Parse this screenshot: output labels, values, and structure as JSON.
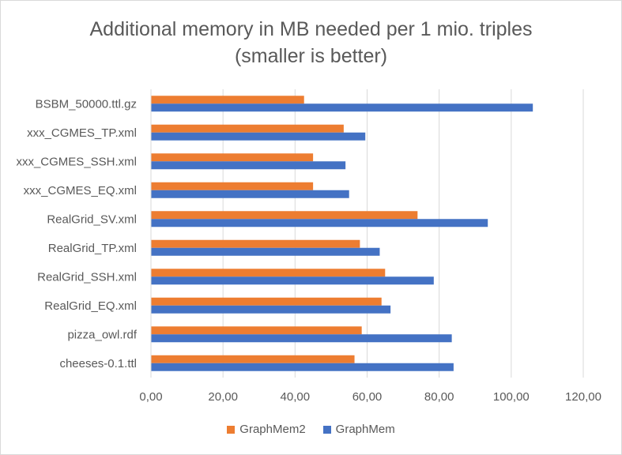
{
  "chart_data": {
    "type": "bar",
    "orientation": "horizontal",
    "title_lines": [
      "Additional memory in MB needed per 1 mio. triples",
      "(smaller is better)"
    ],
    "xlabel": "",
    "ylabel": "",
    "categories": [
      "BSBM_50000.ttl.gz",
      "xxx_CGMES_TP.xml",
      "xxx_CGMES_SSH.xml",
      "xxx_CGMES_EQ.xml",
      "RealGrid_SV.xml",
      "RealGrid_TP.xml",
      "RealGrid_SSH.xml",
      "RealGrid_EQ.xml",
      "pizza_owl.rdf",
      "cheeses-0.1.ttl"
    ],
    "series": [
      {
        "name": "GraphMem2",
        "color": "#ED7D31",
        "values": [
          42.5,
          53.5,
          45.0,
          45.0,
          74.0,
          58.0,
          65.0,
          64.0,
          58.5,
          56.5
        ]
      },
      {
        "name": "GraphMem",
        "color": "#4472C4",
        "values": [
          106.0,
          59.5,
          54.0,
          55.0,
          93.5,
          63.5,
          78.5,
          66.5,
          83.5,
          84.0
        ]
      }
    ],
    "xlim": [
      0,
      120
    ],
    "x_ticks": [
      "0,00",
      "20,00",
      "40,00",
      "60,00",
      "80,00",
      "100,00",
      "120,00"
    ],
    "grid": true,
    "legend_position": "bottom"
  }
}
